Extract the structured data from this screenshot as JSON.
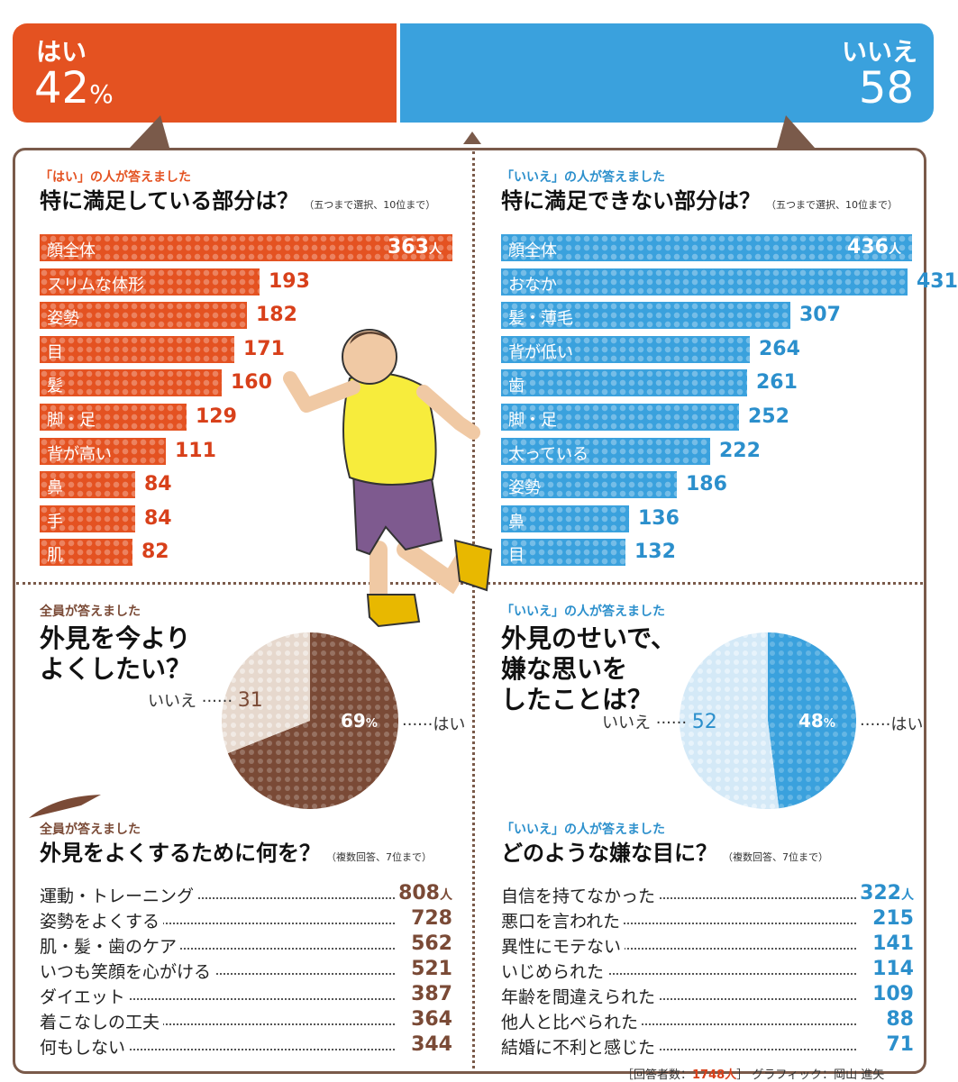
{
  "banner": {
    "yes_label": "はい",
    "yes_value": "42",
    "yes_unit": "%",
    "no_label": "いいえ",
    "no_value": "58"
  },
  "colors": {
    "red": "#e45221",
    "blue": "#3aa1dd",
    "brown": "#7a4a36",
    "beige": "#e6d8cd",
    "lightblue": "#d4e9f7"
  },
  "sections": {
    "satisfied": {
      "kicker_hl": "「はい」",
      "kicker_rest": "の人が答えました",
      "title": "特に満足している部分は？",
      "note": "（五つまで選択、10位まで）"
    },
    "unsatisfied": {
      "kicker_hl": "「いいえ」",
      "kicker_rest": "の人が答えました",
      "title": "特に満足できない部分は？",
      "note": "（五つまで選択、10位まで）"
    },
    "improve": {
      "kicker_hl": "全員",
      "kicker_rest": "が答えました",
      "title_line1": "外見を今より",
      "title_line2": "よくしたい？"
    },
    "bad_experience": {
      "kicker_hl": "「いいえ」",
      "kicker_rest": "の人が答えました",
      "title_line1": "外見のせいで、",
      "title_line2": "嫌な思いを",
      "title_line3": "したことは？"
    },
    "what_to_do": {
      "kicker_hl": "全員",
      "kicker_rest": "が答えました",
      "title": "外見をよくするために何を？",
      "note": "（複数回答、7位まで）"
    },
    "bad_eyes": {
      "kicker_hl": "「いいえ」",
      "kicker_rest": "の人が答えました",
      "title": "どのような嫌な目に？",
      "note": "（複数回答、7位まで）"
    }
  },
  "chart_data": [
    {
      "type": "bar",
      "categories": [
        "顔全体",
        "スリムな体形",
        "姿勢",
        "目",
        "髪",
        "脚・足",
        "背が高い",
        "鼻",
        "手",
        "肌"
      ],
      "values": [
        363,
        193,
        182,
        171,
        160,
        129,
        111,
        84,
        84,
        82
      ],
      "unit": "人"
    },
    {
      "type": "bar",
      "categories": [
        "顔全体",
        "おなか",
        "髪・薄毛",
        "背が低い",
        "歯",
        "脚・足",
        "太っている",
        "姿勢",
        "鼻",
        "目"
      ],
      "values": [
        436,
        431,
        307,
        264,
        261,
        252,
        222,
        186,
        136,
        132
      ],
      "unit": "人"
    },
    {
      "type": "pie",
      "categories": [
        "はい",
        "いいえ"
      ],
      "values": [
        69,
        31
      ],
      "unit": "%"
    },
    {
      "type": "pie",
      "categories": [
        "はい",
        "いいえ"
      ],
      "values": [
        48,
        52
      ],
      "unit": "%"
    },
    {
      "type": "table",
      "categories": [
        "運動・トレーニング",
        "姿勢をよくする",
        "肌・髪・歯のケア",
        "いつも笑顔を心がける",
        "ダイエット",
        "着こなしの工夫",
        "何もしない"
      ],
      "values": [
        808,
        728,
        562,
        521,
        387,
        364,
        344
      ],
      "unit": "人"
    },
    {
      "type": "table",
      "categories": [
        "自信を持てなかった",
        "悪口を言われた",
        "異性にモテない",
        "いじめられた",
        "年齢を間違えられた",
        "他人と比べられた",
        "結婚に不利と感じた"
      ],
      "values": [
        322,
        215,
        141,
        114,
        109,
        88,
        71
      ],
      "unit": "人"
    }
  ],
  "footer": {
    "prefix": "［回答者数：",
    "count": "1748人",
    "suffix": "］ グラフィック：岡山 進矢"
  }
}
